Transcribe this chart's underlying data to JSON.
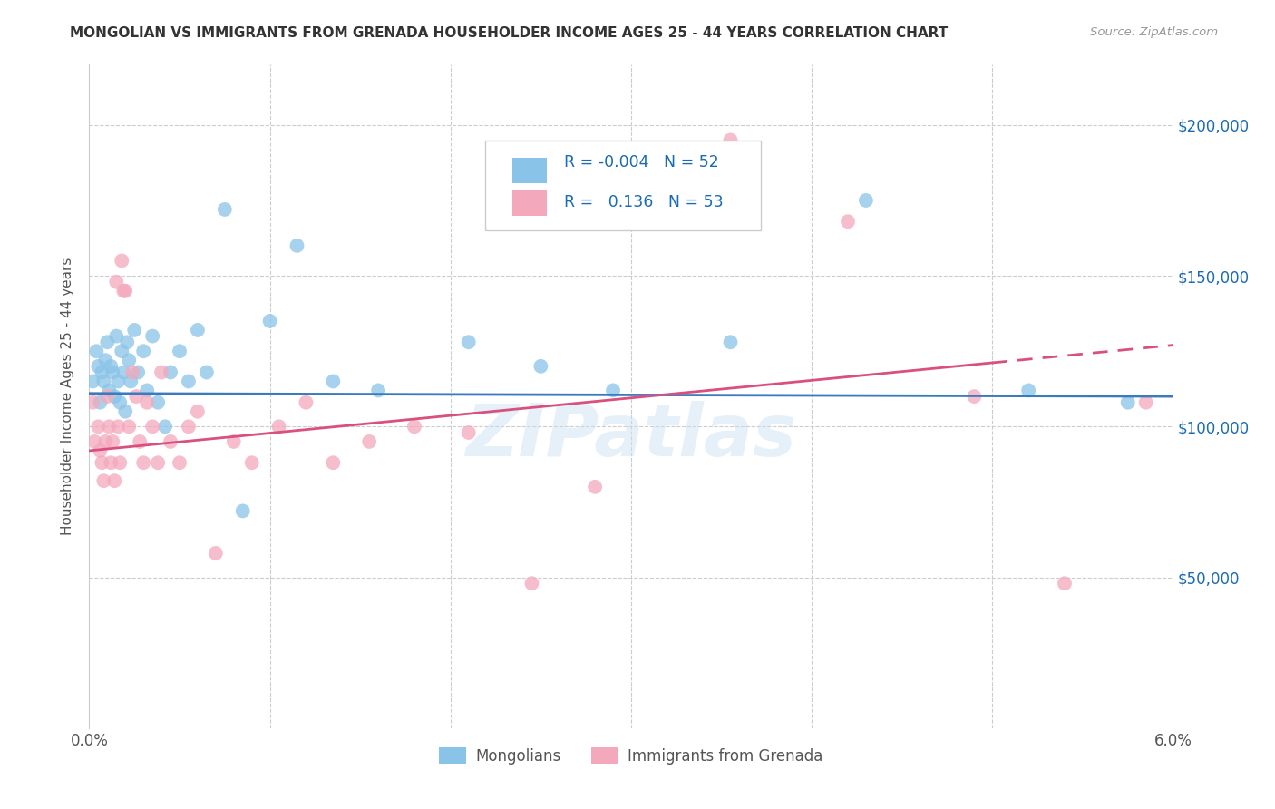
{
  "title": "MONGOLIAN VS IMMIGRANTS FROM GRENADA HOUSEHOLDER INCOME AGES 25 - 44 YEARS CORRELATION CHART",
  "source": "Source: ZipAtlas.com",
  "ylabel": "Householder Income Ages 25 - 44 years",
  "xlim": [
    0.0,
    6.0
  ],
  "ylim": [
    0,
    220000
  ],
  "yticks": [
    0,
    50000,
    100000,
    150000,
    200000
  ],
  "ytick_labels": [
    "",
    "$50,000",
    "$100,000",
    "$150,000",
    "$200,000"
  ],
  "watermark": "ZIPatlas",
  "blue_color": "#89c4e8",
  "pink_color": "#f4a8bc",
  "line_blue": "#3a7abf",
  "line_pink": "#d94f7e",
  "mongolians_label": "Mongolians",
  "grenada_label": "Immigrants from Grenada",
  "mongolians_x": [
    0.02,
    0.04,
    0.05,
    0.06,
    0.07,
    0.08,
    0.09,
    0.1,
    0.11,
    0.12,
    0.13,
    0.14,
    0.15,
    0.16,
    0.17,
    0.18,
    0.19,
    0.2,
    0.21,
    0.22,
    0.23,
    0.25,
    0.27,
    0.3,
    0.32,
    0.35,
    0.38,
    0.42,
    0.45,
    0.5,
    0.55,
    0.6,
    0.65,
    0.75,
    0.85,
    1.0,
    1.15,
    1.35,
    1.6,
    2.1,
    2.5,
    2.9,
    3.55,
    4.3,
    5.2,
    5.75
  ],
  "mongolians_y": [
    115000,
    125000,
    120000,
    108000,
    118000,
    115000,
    122000,
    128000,
    112000,
    120000,
    118000,
    110000,
    130000,
    115000,
    108000,
    125000,
    118000,
    105000,
    128000,
    122000,
    115000,
    132000,
    118000,
    125000,
    112000,
    130000,
    108000,
    100000,
    118000,
    125000,
    115000,
    132000,
    118000,
    172000,
    72000,
    135000,
    160000,
    115000,
    112000,
    128000,
    120000,
    112000,
    128000,
    175000,
    112000,
    108000
  ],
  "grenada_x": [
    0.02,
    0.03,
    0.05,
    0.06,
    0.07,
    0.08,
    0.09,
    0.1,
    0.11,
    0.12,
    0.13,
    0.14,
    0.15,
    0.16,
    0.17,
    0.18,
    0.19,
    0.2,
    0.22,
    0.24,
    0.26,
    0.28,
    0.3,
    0.32,
    0.35,
    0.38,
    0.4,
    0.45,
    0.5,
    0.55,
    0.6,
    0.7,
    0.8,
    0.9,
    1.05,
    1.2,
    1.35,
    1.55,
    1.8,
    2.1,
    2.45,
    2.8,
    3.55,
    4.2,
    4.9,
    5.4,
    5.85
  ],
  "grenada_y": [
    108000,
    95000,
    100000,
    92000,
    88000,
    82000,
    95000,
    110000,
    100000,
    88000,
    95000,
    82000,
    148000,
    100000,
    88000,
    155000,
    145000,
    145000,
    100000,
    118000,
    110000,
    95000,
    88000,
    108000,
    100000,
    88000,
    118000,
    95000,
    88000,
    100000,
    105000,
    58000,
    95000,
    88000,
    100000,
    108000,
    88000,
    95000,
    100000,
    98000,
    48000,
    80000,
    195000,
    168000,
    110000,
    48000,
    108000
  ]
}
